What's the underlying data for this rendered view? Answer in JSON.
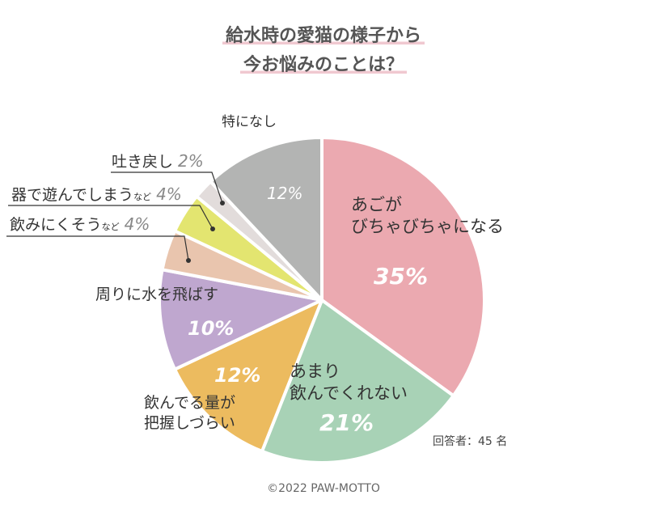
{
  "chart_data": {
    "type": "pie",
    "title_lines": [
      "給水時の愛猫の様子から",
      "今お悩みのことは？"
    ],
    "start": "12 o'clock, clockwise",
    "slices": [
      {
        "label_lines": [
          "あご が",
          "びちゃびちゃになる"
        ],
        "value": 35,
        "display": "35%",
        "color": "#eba9b0"
      },
      {
        "label_lines": [
          "あまり",
          "飲んでくれない"
        ],
        "value": 21,
        "display": "21%",
        "color": "#a8d2b6"
      },
      {
        "label_lines": [
          "飲んでる量が",
          "把握しづらい"
        ],
        "value": 12,
        "display": "12%",
        "color": "#ecbb5f"
      },
      {
        "label_lines": [
          "周りに水を飛ばす"
        ],
        "value": 10,
        "display": "10%",
        "color": "#bfa7cf"
      },
      {
        "label_lines": [
          "飲みにくそう"
        ],
        "suffix": "など",
        "value": 4,
        "display": "4%",
        "color": "#e9c5ae"
      },
      {
        "label_lines": [
          "器で遊んでしまう"
        ],
        "suffix": "など",
        "value": 4,
        "display": "4%",
        "color": "#e3e570"
      },
      {
        "label_lines": [
          "吐き戻し"
        ],
        "value": 2,
        "display": "2%",
        "color": "#e2dcdb"
      },
      {
        "label_lines": [
          "特になし"
        ],
        "value": 12,
        "display": "12%",
        "color": "#b3b4b3"
      }
    ],
    "note": "回答者：45 名",
    "legend": "none"
  },
  "footer": "©2022 PAW-MOTTO"
}
